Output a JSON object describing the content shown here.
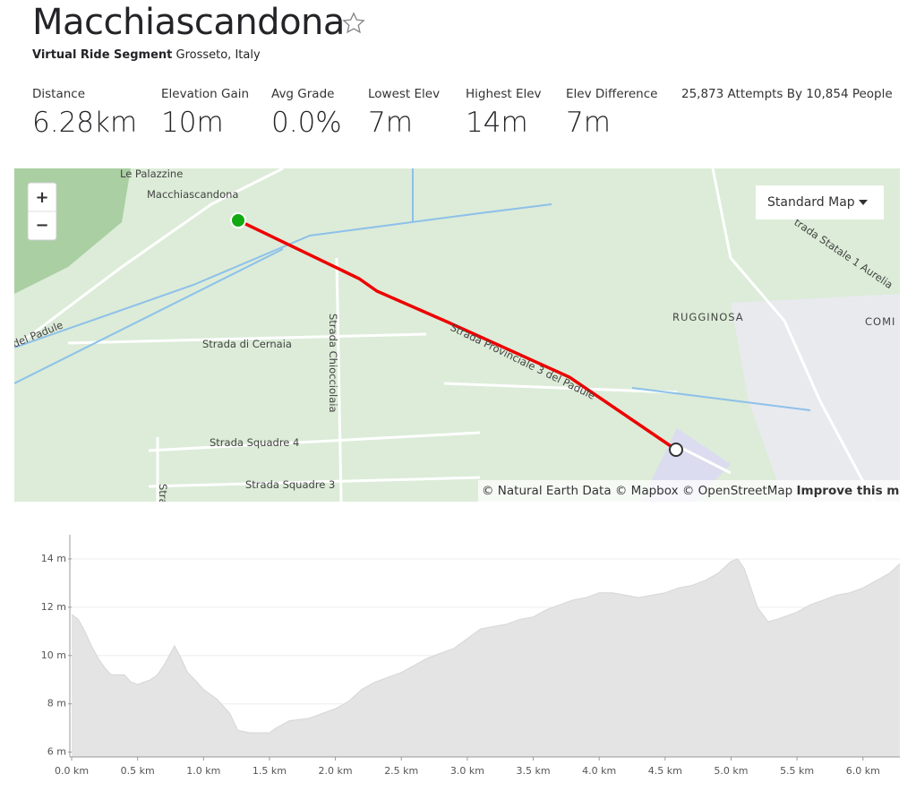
{
  "header": {
    "title": "Macchiascandona",
    "segment_type": "Virtual Ride Segment",
    "location": "Grosseto, Italy"
  },
  "stats": [
    {
      "label": "Distance",
      "value": "6.28km"
    },
    {
      "label": "Elevation Gain",
      "value": "10m"
    },
    {
      "label": "Avg Grade",
      "value": "0.0%"
    },
    {
      "label": "Lowest Elev",
      "value": "7m"
    },
    {
      "label": "Highest Elev",
      "value": "14m"
    },
    {
      "label": "Elev Difference",
      "value": "7m"
    }
  ],
  "attempts": "25,873 Attempts By 10,854 People",
  "map": {
    "zoom_in": "+",
    "zoom_out": "−",
    "style_button": "Standard Map",
    "labels": [
      "Le Palazzine",
      "Macchiascandona",
      "del Padule",
      "Strada di Cernaia",
      "Strada Chiocciolaia",
      "Strada Squadre 4",
      "Strada Squadre 3",
      "Strada Provinciale 3 del Padule",
      "trada Statale 1 Aurelia",
      "RUGGINOSA",
      "COMI",
      "Stra"
    ],
    "attribution": "© Natural Earth Data © Mapbox © OpenStreetMap",
    "improve": "Improve this map"
  },
  "chart_data": {
    "type": "area",
    "color": "#e4e4e4",
    "x": [
      0,
      0.05,
      0.1,
      0.15,
      0.2,
      0.25,
      0.3,
      0.4,
      0.45,
      0.5,
      0.55,
      0.6,
      0.65,
      0.7,
      0.75,
      0.78,
      0.82,
      0.88,
      0.95,
      1.0,
      1.1,
      1.2,
      1.26,
      1.35,
      1.5,
      1.55,
      1.65,
      1.8,
      1.9,
      2.0,
      2.1,
      2.2,
      2.3,
      2.4,
      2.5,
      2.6,
      2.7,
      2.8,
      2.9,
      3.0,
      3.1,
      3.2,
      3.3,
      3.4,
      3.5,
      3.6,
      3.7,
      3.8,
      3.9,
      4.0,
      4.1,
      4.2,
      4.3,
      4.4,
      4.5,
      4.6,
      4.7,
      4.8,
      4.9,
      5.0,
      5.05,
      5.1,
      5.15,
      5.2,
      5.28,
      5.35,
      5.5,
      5.6,
      5.7,
      5.8,
      5.9,
      6.0,
      6.1,
      6.2,
      6.28
    ],
    "values": [
      11.7,
      11.5,
      11.0,
      10.4,
      9.9,
      9.5,
      9.2,
      9.2,
      8.9,
      8.8,
      8.9,
      9.0,
      9.2,
      9.6,
      10.1,
      10.4,
      10.0,
      9.3,
      8.9,
      8.6,
      8.2,
      7.6,
      6.9,
      6.8,
      6.8,
      7.0,
      7.3,
      7.4,
      7.6,
      7.8,
      8.1,
      8.6,
      8.9,
      9.1,
      9.3,
      9.6,
      9.9,
      10.1,
      10.3,
      10.7,
      11.1,
      11.2,
      11.3,
      11.5,
      11.6,
      11.9,
      12.1,
      12.3,
      12.4,
      12.6,
      12.6,
      12.5,
      12.4,
      12.5,
      12.6,
      12.8,
      12.9,
      13.1,
      13.4,
      13.9,
      14.0,
      13.6,
      12.8,
      12.0,
      11.4,
      11.5,
      11.8,
      12.1,
      12.3,
      12.5,
      12.6,
      12.8,
      13.1,
      13.4,
      13.8
    ],
    "xlim": [
      0,
      6.28
    ],
    "ylim": [
      5.8,
      15
    ],
    "xticks": [
      {
        "value": 0,
        "label": "0.0 km"
      },
      {
        "value": 0.5,
        "label": "0.5 km"
      },
      {
        "value": 1,
        "label": "1.0 km"
      },
      {
        "value": 1.5,
        "label": "1.5 km"
      },
      {
        "value": 2,
        "label": "2.0 km"
      },
      {
        "value": 2.5,
        "label": "2.5 km"
      },
      {
        "value": 3,
        "label": "3.0 km"
      },
      {
        "value": 3.5,
        "label": "3.5 km"
      },
      {
        "value": 4,
        "label": "4.0 km"
      },
      {
        "value": 4.5,
        "label": "4.5 km"
      },
      {
        "value": 5,
        "label": "5.0 km"
      },
      {
        "value": 5.5,
        "label": "5.5 km"
      },
      {
        "value": 6,
        "label": "6.0 km"
      }
    ],
    "yticks": [
      {
        "value": 6,
        "label": "6 m"
      },
      {
        "value": 8,
        "label": "8 m"
      },
      {
        "value": 10,
        "label": "10 m"
      },
      {
        "value": 12,
        "label": "12 m"
      },
      {
        "value": 14,
        "label": "14 m"
      }
    ],
    "grid": true
  }
}
